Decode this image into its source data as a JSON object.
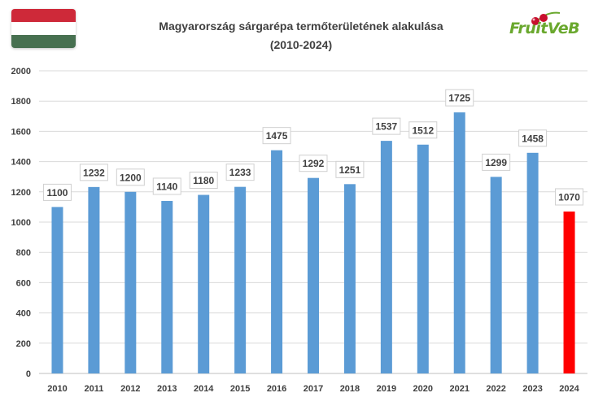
{
  "chart_data": {
    "type": "bar",
    "title_line1": "Magyarország sárgarépa termőterületének alakulása",
    "title_line2": "(2010-2024)",
    "categories": [
      "2010",
      "2011",
      "2012",
      "2013",
      "2014",
      "2015",
      "2016",
      "2017",
      "2018",
      "2019",
      "2020",
      "2021",
      "2022",
      "2023",
      "2024"
    ],
    "values": [
      1100,
      1232,
      1200,
      1140,
      1180,
      1233,
      1475,
      1292,
      1251,
      1537,
      1512,
      1725,
      1299,
      1458,
      1070
    ],
    "ylim": [
      0,
      2000
    ],
    "yticks": [
      0,
      200,
      400,
      600,
      800,
      1000,
      1200,
      1400,
      1600,
      1800,
      2000
    ],
    "grid": true,
    "legend": "none",
    "colors": {
      "bar": "#5b9bd5",
      "highlight_bar": "#ff0000",
      "highlight_index": 14
    }
  },
  "flag": {
    "colors": [
      "#ce2939",
      "#ffffff",
      "#477050"
    ]
  },
  "logo": {
    "text": "FruitVeB",
    "icon": "cherry-icon"
  }
}
